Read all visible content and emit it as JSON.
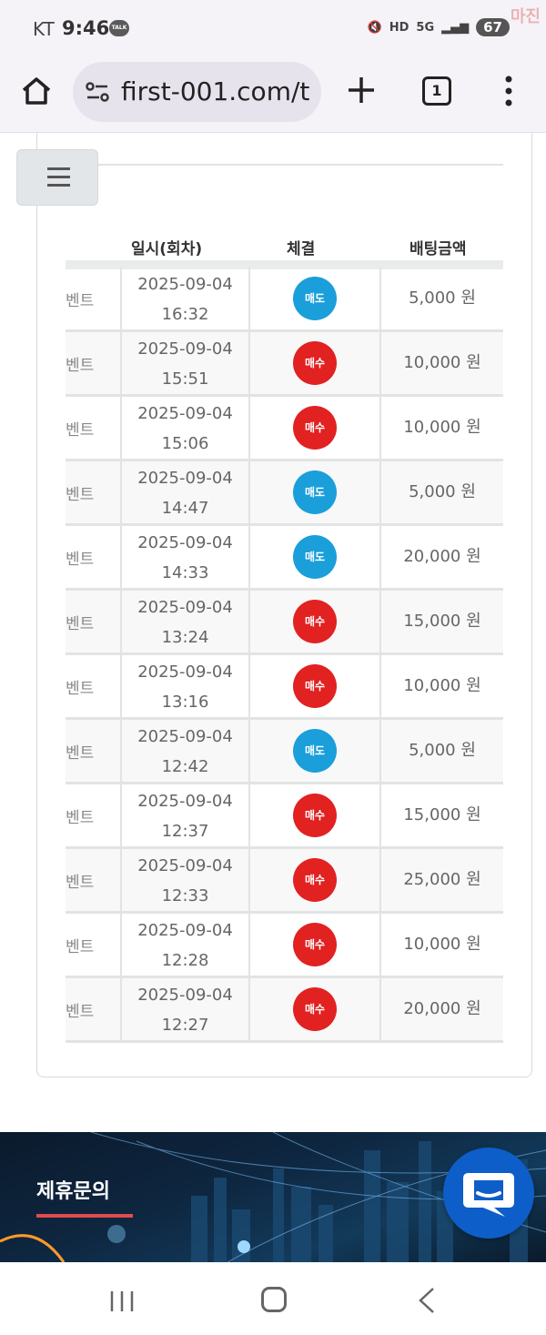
{
  "status_bar": {
    "carrier": "KT",
    "time": "9:46",
    "talk_badge": "TALK",
    "hd": "HD",
    "network": "5G",
    "battery": "67",
    "watermark": "마진"
  },
  "browser": {
    "url": "first-001.com/t",
    "tab_count": "1"
  },
  "table": {
    "headers": {
      "date": "일시(회차)",
      "execution": "체결",
      "amount": "배팅금액"
    },
    "rows": [
      {
        "event": "벤트",
        "date": "2025-09-04",
        "time": "16:32",
        "execution": "매도",
        "type": "sell",
        "amount": "5,000 원"
      },
      {
        "event": "벤트",
        "date": "2025-09-04",
        "time": "15:51",
        "execution": "매수",
        "type": "buy",
        "amount": "10,000 원"
      },
      {
        "event": "벤트",
        "date": "2025-09-04",
        "time": "15:06",
        "execution": "매수",
        "type": "buy",
        "amount": "10,000 원"
      },
      {
        "event": "벤트",
        "date": "2025-09-04",
        "time": "14:47",
        "execution": "매도",
        "type": "sell",
        "amount": "5,000 원"
      },
      {
        "event": "벤트",
        "date": "2025-09-04",
        "time": "14:33",
        "execution": "매도",
        "type": "sell",
        "amount": "20,000 원"
      },
      {
        "event": "벤트",
        "date": "2025-09-04",
        "time": "13:24",
        "execution": "매수",
        "type": "buy",
        "amount": "15,000 원"
      },
      {
        "event": "벤트",
        "date": "2025-09-04",
        "time": "13:16",
        "execution": "매수",
        "type": "buy",
        "amount": "10,000 원"
      },
      {
        "event": "벤트",
        "date": "2025-09-04",
        "time": "12:42",
        "execution": "매도",
        "type": "sell",
        "amount": "5,000 원"
      },
      {
        "event": "벤트",
        "date": "2025-09-04",
        "time": "12:37",
        "execution": "매수",
        "type": "buy",
        "amount": "15,000 원"
      },
      {
        "event": "벤트",
        "date": "2025-09-04",
        "time": "12:33",
        "execution": "매수",
        "type": "buy",
        "amount": "25,000 원"
      },
      {
        "event": "벤트",
        "date": "2025-09-04",
        "time": "12:28",
        "execution": "매수",
        "type": "buy",
        "amount": "10,000 원"
      },
      {
        "event": "벤트",
        "date": "2025-09-04",
        "time": "12:27",
        "execution": "매수",
        "type": "buy",
        "amount": "20,000 원"
      }
    ]
  },
  "footer": {
    "label": "제휴문의"
  },
  "colors": {
    "buy": "#e22121",
    "sell": "#1a9fda",
    "accent_underline": "#e04b4b",
    "chat_button": "#0d5ec9"
  },
  "icons": {
    "home": "home-icon",
    "site_settings": "tune-icon",
    "new_tab": "plus-icon",
    "tabs": "tab-switcher-icon",
    "menu": "more-vert-icon",
    "hamburger": "hamburger-menu-icon",
    "chat": "chat-bubble-icon"
  }
}
